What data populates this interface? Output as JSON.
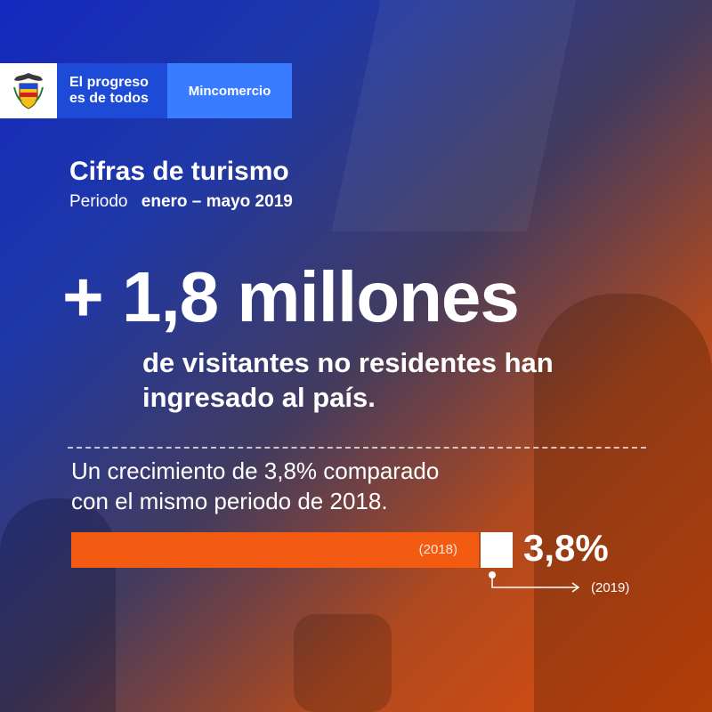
{
  "header": {
    "crest_icon": "colombia-coat-of-arms-icon",
    "slogan_line1": "El progreso",
    "slogan_line2": "es de todos",
    "ministry": "Mincomercio"
  },
  "title": "Cifras de turismo",
  "period_label": "Periodo",
  "period_value": "enero – mayo 2019",
  "headline": "+ 1,8 millones",
  "subline": "de visitantes no residentes han ingresado al país.",
  "growth_text_line1": "Un crecimiento de 3,8% comparado",
  "growth_text_line2": "con el mismo periodo de 2018.",
  "comparison": {
    "base_label": "(2018)",
    "new_label": "(2019)",
    "growth_value": "3,8%",
    "growth_fraction": 0.038,
    "colors": {
      "base": "#f35a12",
      "new": "#ffffff"
    }
  }
}
